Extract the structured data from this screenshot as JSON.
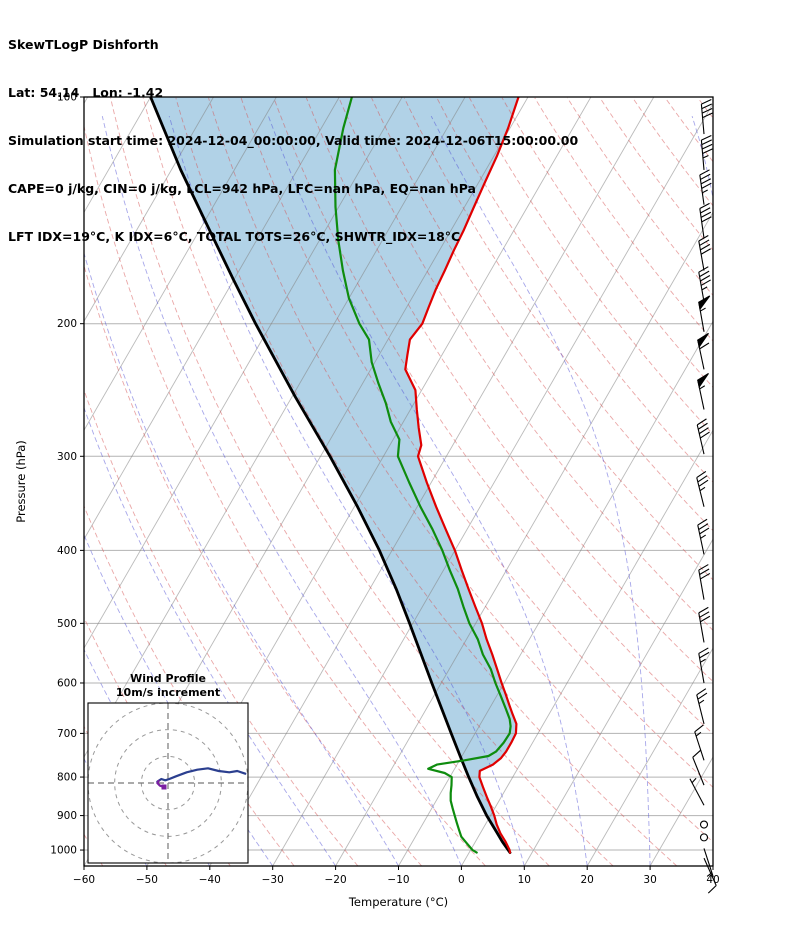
{
  "header": {
    "line1": "SkewTLogP Dishforth",
    "line2": "Lat: 54.14   Lon: -1.42",
    "line3": "Simulation start time: 2024-12-04_00:00:00, Valid time: 2024-12-06T15:00:00.00",
    "line4": "CAPE=0 j/kg, CIN=0 j/kg, LCL=942 hPa, LFC=nan hPa, EQ=nan hPa",
    "line5": "LFT IDX=19°C, K IDX=6°C, TOTAL TOTS=26°C, SHWTR_IDX=18°C"
  },
  "chart_data": {
    "type": "skewt-logp",
    "xlabel": "Temperature (°C)",
    "ylabel": "Pressure (hPa)",
    "pressure_ticks": [
      100,
      200,
      300,
      400,
      500,
      600,
      700,
      800,
      900,
      1000
    ],
    "temp_ticks": [
      -60,
      -50,
      -40,
      -30,
      -20,
      -10,
      0,
      10,
      20,
      30,
      40
    ],
    "pressure_range": [
      1050,
      100
    ],
    "temp_range": [
      -60,
      40
    ],
    "skew_rotation_deg": 30,
    "series": {
      "temperature": {
        "color": "#e00000",
        "pressure": [
          1008,
          1000,
          975,
          950,
          925,
          900,
          875,
          850,
          825,
          800,
          785,
          770,
          755,
          740,
          720,
          700,
          680,
          660,
          640,
          620,
          600,
          575,
          550,
          525,
          500,
          475,
          450,
          425,
          400,
          375,
          350,
          325,
          300,
          290,
          275,
          260,
          245,
          230,
          220,
          210,
          200,
          190,
          180,
          170,
          160,
          150,
          140,
          130,
          120,
          110,
          100
        ],
        "values": [
          6.5,
          6.2,
          4.8,
          3.2,
          1.8,
          0.6,
          -0.8,
          -2.3,
          -3.8,
          -5.3,
          -5.8,
          -4.3,
          -3.6,
          -3.4,
          -3.4,
          -3.5,
          -4.3,
          -5.8,
          -7.3,
          -8.8,
          -10.4,
          -12.4,
          -14.5,
          -16.8,
          -19,
          -21.6,
          -24.3,
          -27.1,
          -30,
          -33.4,
          -37,
          -40.7,
          -44.5,
          -45,
          -47,
          -49,
          -51,
          -54.5,
          -55.5,
          -56.5,
          -56,
          -56.5,
          -57,
          -57.3,
          -57.7,
          -58,
          -58.5,
          -59,
          -59.5,
          -60.3,
          -61.5
        ]
      },
      "dewpoint": {
        "color": "#0e8c0e",
        "pressure": [
          1008,
          1000,
          980,
          960,
          940,
          920,
          900,
          880,
          860,
          840,
          820,
          800,
          790,
          780,
          770,
          760,
          750,
          740,
          720,
          700,
          685,
          670,
          650,
          625,
          600,
          575,
          550,
          525,
          500,
          475,
          450,
          425,
          400,
          375,
          350,
          325,
          300,
          285,
          270,
          255,
          240,
          225,
          210,
          200,
          185,
          170,
          155,
          140,
          125,
          110,
          100
        ],
        "values": [
          1.2,
          0.3,
          -1.2,
          -2.7,
          -3.7,
          -4.7,
          -5.7,
          -6.7,
          -7.7,
          -8.4,
          -9,
          -9.7,
          -11.2,
          -14.2,
          -13.2,
          -9.2,
          -5.8,
          -5,
          -4.6,
          -4.5,
          -5,
          -5.8,
          -7.3,
          -9.3,
          -11.4,
          -13.4,
          -16,
          -18.2,
          -21,
          -23.5,
          -26,
          -29,
          -32,
          -35.5,
          -39.5,
          -43.5,
          -47.7,
          -49,
          -52,
          -54.5,
          -57.5,
          -60.5,
          -63,
          -66,
          -70,
          -73.5,
          -77,
          -80.5,
          -84,
          -86.5,
          -88
        ]
      },
      "parcel": {
        "color": "#000000",
        "pressure": [
          1008,
          975,
          942,
          900,
          850,
          800,
          750,
          700,
          650,
          600,
          550,
          500,
          450,
          400,
          350,
          300,
          250,
          200,
          175,
          150,
          125,
          100
        ],
        "values": [
          6.5,
          4.3,
          2.2,
          -0.6,
          -3.8,
          -7,
          -10.3,
          -13.8,
          -17.5,
          -21.5,
          -25.8,
          -30.5,
          -35.8,
          -42,
          -49.5,
          -58.5,
          -69.5,
          -82.5,
          -90,
          -98.5,
          -108.5,
          -120
        ]
      }
    },
    "shading": {
      "color": "rgba(158,199,225,0.8)",
      "between": [
        "parcel",
        "temperature"
      ]
    },
    "background": {
      "pressure_grid_color": "rgba(160,160,160,0.8)",
      "isotherm_step": 10,
      "isotherm_color": "rgba(130,130,130,0.55)",
      "dry_adiabats": {
        "start": -60,
        "end": 240,
        "step": 10,
        "color": "rgba(214,80,80,0.5)"
      },
      "moist_adiabats": {
        "start": -60,
        "end": 60,
        "step": 10,
        "color": "rgba(80,80,214,0.5)"
      }
    },
    "wind_barbs": [
      [
        112,
        40,
        355
      ],
      [
        125,
        45,
        355
      ],
      [
        139,
        45,
        352
      ],
      [
        154,
        40,
        352
      ],
      [
        170,
        40,
        350
      ],
      [
        187,
        45,
        350
      ],
      [
        205,
        55,
        350
      ],
      [
        230,
        60,
        348
      ],
      [
        260,
        55,
        348
      ],
      [
        298,
        40,
        347
      ],
      [
        350,
        35,
        346
      ],
      [
        405,
        35,
        348
      ],
      [
        465,
        30,
        350
      ],
      [
        530,
        30,
        350
      ],
      [
        600,
        25,
        350
      ],
      [
        680,
        25,
        346
      ],
      [
        760,
        15,
        342
      ],
      [
        820,
        10,
        338
      ],
      [
        872,
        5,
        332
      ],
      [
        925,
        0,
        0
      ],
      [
        962,
        0,
        0
      ],
      [
        995,
        6,
        162
      ],
      [
        1025,
        8,
        156
      ]
    ],
    "hodograph": {
      "title1": "Wind Profile",
      "title2": "10m/s increment",
      "rings": [
        10,
        20,
        30
      ],
      "trace_upper": {
        "color": "#2b3f8f",
        "u": [
          -4,
          -2.5,
          -1,
          0.5,
          3,
          7,
          11,
          15,
          19,
          23,
          26,
          29
        ],
        "v": [
          0.5,
          1.5,
          1,
          1.5,
          2.5,
          4,
          5,
          5.5,
          4.5,
          4,
          4.5,
          3.5
        ]
      },
      "trace_lower": {
        "color": "#7a1fa2",
        "u": [
          -1.5,
          -3,
          -4,
          -3.5
        ],
        "v": [
          -1.5,
          -1,
          0,
          0.8
        ]
      }
    }
  }
}
